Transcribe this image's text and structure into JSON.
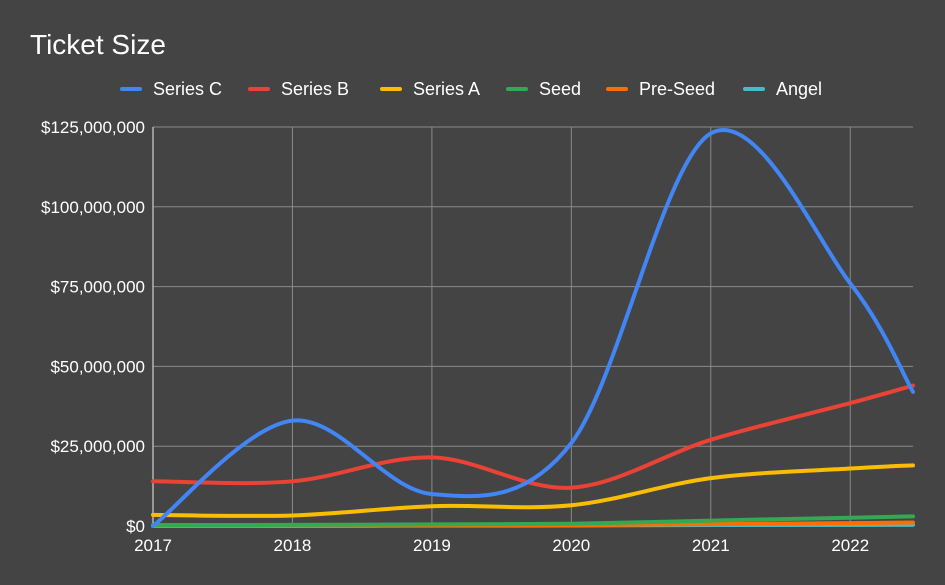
{
  "chart_data": {
    "type": "line",
    "title": "Ticket Size",
    "categories": [
      "2017",
      "2018",
      "2019",
      "2020",
      "2021",
      "2022"
    ],
    "x_values": [
      2017,
      2018,
      2019,
      2020,
      2021,
      2022,
      2022.45
    ],
    "ylim": [
      0,
      125000000
    ],
    "y_ticks": [
      0,
      25000000,
      50000000,
      75000000,
      100000000,
      125000000
    ],
    "y_tick_labels": [
      "$0",
      "$25,000,000",
      "$50,000,000",
      "$75,000,000",
      "$100,000,000",
      "$125,000,000"
    ],
    "grid": true,
    "legend_position": "top",
    "series": [
      {
        "name": "Series C",
        "color": "#4285F4",
        "values": [
          0,
          33000000,
          10000000,
          26000000,
          123000000,
          76000000,
          42000000
        ]
      },
      {
        "name": "Series B",
        "color": "#EA4335",
        "values": [
          14000000,
          14000000,
          21500000,
          12000000,
          27000000,
          38500000,
          44000000
        ]
      },
      {
        "name": "Series A",
        "color": "#FBBC04",
        "values": [
          3500000,
          3300000,
          6200000,
          6500000,
          15000000,
          18000000,
          19000000
        ]
      },
      {
        "name": "Seed",
        "color": "#34A853",
        "values": [
          300000,
          350000,
          500000,
          700000,
          1700000,
          2600000,
          3000000
        ]
      },
      {
        "name": "Pre-Seed",
        "color": "#FF6D01",
        "values": [
          100000,
          100000,
          200000,
          250000,
          600000,
          900000,
          1100000
        ]
      },
      {
        "name": "Angel",
        "color": "#46BDC6",
        "values": [
          0,
          0,
          100000,
          150000,
          300000,
          350000,
          400000
        ]
      }
    ]
  }
}
